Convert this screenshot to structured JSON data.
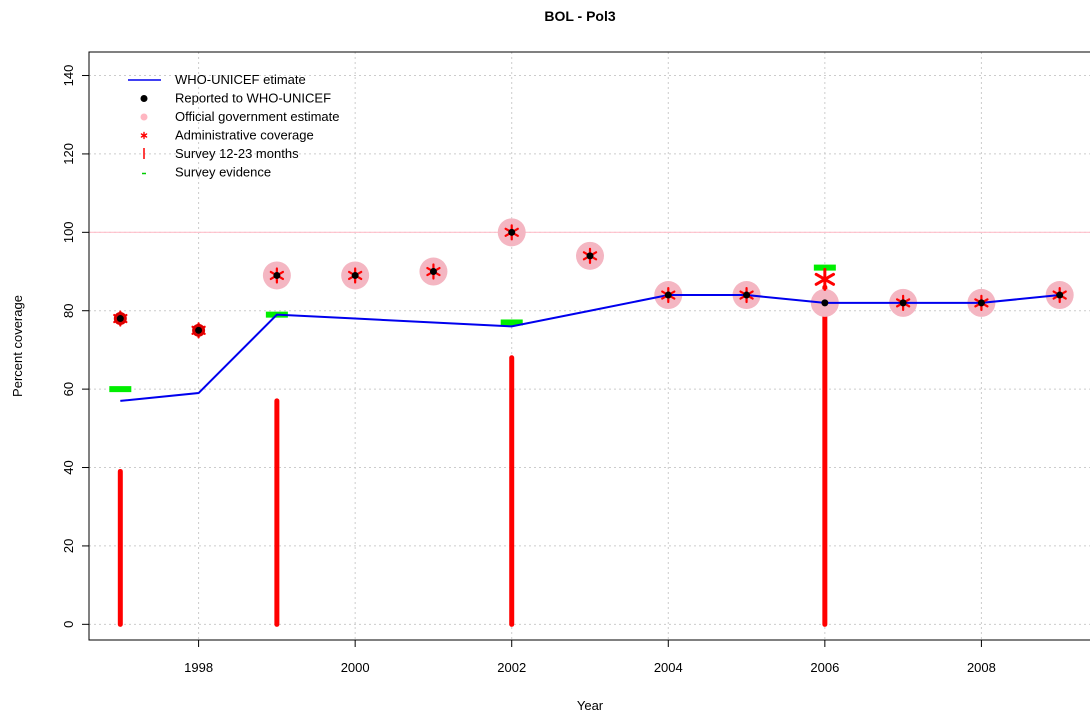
{
  "chart_data": {
    "type": "line",
    "title": "BOL  -  Pol3",
    "xlabel": "Year",
    "ylabel": "Percent coverage",
    "xlim": [
      1996.6,
      2009.4
    ],
    "ylim": [
      -4,
      146
    ],
    "x_ticks": [
      1998,
      2000,
      2002,
      2004,
      2006,
      2008
    ],
    "y_ticks": [
      0,
      20,
      40,
      60,
      80,
      100,
      120,
      140
    ],
    "grid": true,
    "reference_line": 100,
    "legend_position": "top-left",
    "legend": [
      {
        "label": "WHO-UNICEF etimate",
        "symbol": "line"
      },
      {
        "label": "Reported to WHO-UNICEF",
        "symbol": "dot"
      },
      {
        "label": "Official government estimate",
        "symbol": "pink-dot"
      },
      {
        "label": "Administrative coverage",
        "symbol": "star"
      },
      {
        "label": "Survey 12-23 months",
        "symbol": "bar"
      },
      {
        "label": "Survey evidence",
        "symbol": "dash"
      }
    ],
    "series": [
      {
        "name": "WHO-UNICEF etimate",
        "x": [
          1997,
          1998,
          1999,
          2000,
          2001,
          2002,
          2003,
          2004,
          2005,
          2006,
          2007,
          2008,
          2009
        ],
        "values": [
          57,
          59,
          79,
          78,
          77,
          76,
          80,
          84,
          84,
          82,
          82,
          82,
          84
        ]
      },
      {
        "name": "Reported to WHO-UNICEF",
        "x": [
          1997,
          1998,
          1999,
          2000,
          2001,
          2002,
          2003,
          2004,
          2005,
          2006,
          2007,
          2008,
          2009
        ],
        "values": [
          78,
          75,
          89,
          89,
          90,
          100,
          94,
          84,
          84,
          82,
          82,
          82,
          84
        ]
      },
      {
        "name": "Official government estimate",
        "x": [
          1999,
          2000,
          2001,
          2002,
          2003,
          2004,
          2005,
          2006,
          2007,
          2008,
          2009
        ],
        "values": [
          89,
          89,
          90,
          100,
          94,
          84,
          84,
          82,
          82,
          82,
          84
        ]
      },
      {
        "name": "Administrative coverage",
        "x": [
          1997,
          1998,
          1999,
          2000,
          2001,
          2002,
          2003,
          2004,
          2005,
          2006,
          2007,
          2008,
          2009
        ],
        "values": [
          78,
          75,
          89,
          89,
          90,
          100,
          94,
          84,
          84,
          88,
          82,
          82,
          84
        ]
      },
      {
        "name": "Survey 12-23 months",
        "x": [
          1997,
          1999,
          2002,
          2006
        ],
        "values": [
          39,
          57,
          68,
          86
        ]
      },
      {
        "name": "Survey evidence",
        "x": [
          1997,
          1999,
          2002,
          2006
        ],
        "values": [
          60,
          79,
          77,
          91
        ]
      }
    ]
  }
}
